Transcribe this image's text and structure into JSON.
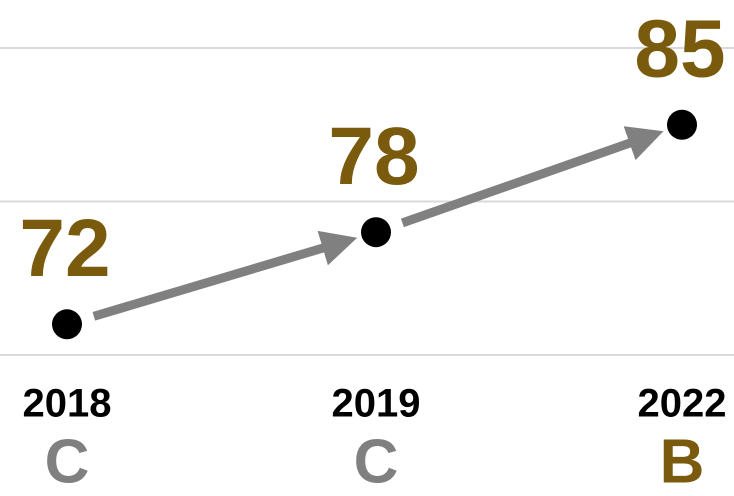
{
  "chart_data": {
    "type": "dot-line",
    "categories": [
      "2018",
      "2019",
      "2022"
    ],
    "values": [
      72,
      78,
      85
    ],
    "grades": [
      "C",
      "C",
      "B"
    ],
    "grade_colors": [
      "#808080",
      "#808080",
      "#7a5a0c"
    ],
    "color": "#000000",
    "label_color": "#7a5a0c",
    "arrow_color": "#808080",
    "ylim": [
      70,
      90
    ],
    "yticks": [
      70,
      80,
      90
    ],
    "grid": true
  }
}
